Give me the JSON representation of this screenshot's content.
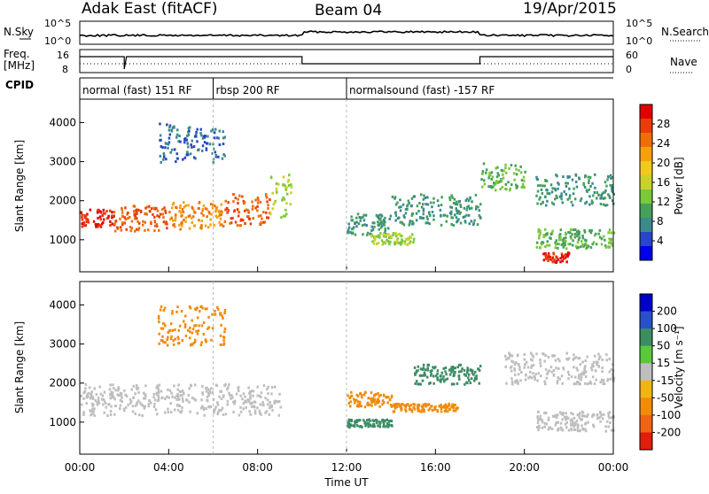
{
  "header": {
    "station": "Adak East (fitACF)",
    "beam": "Beam 04",
    "date": "19/Apr/2015"
  },
  "panels": {
    "noise": {
      "left_label": "N.Sky",
      "left_ticks": [
        "10^5",
        "10^0"
      ],
      "right_ticks": [
        "10^5",
        "10^0"
      ],
      "right_label": "N.Search"
    },
    "freq": {
      "left_label_1": "Freq.",
      "left_label_2": "[MHz]",
      "left_ticks": [
        "16",
        "8"
      ],
      "right_ticks": [
        "60",
        "0"
      ],
      "right_label": "Nave"
    },
    "cpid": {
      "label": "CPID",
      "segments": [
        {
          "text": "normal (fast) 151 RF",
          "start_hr": 0,
          "end_hr": 6
        },
        {
          "text": "rbsp 200 RF",
          "start_hr": 6,
          "end_hr": 12
        },
        {
          "text": "normalsound (fast) -157 RF",
          "start_hr": 12,
          "end_hr": 24
        }
      ]
    }
  },
  "power_panel": {
    "ylabel": "Slant Range [km]",
    "colorbar_label": "Power [dB]",
    "colorbar_ticks": [
      "28",
      "24",
      "20",
      "16",
      "12",
      "8",
      "4"
    ],
    "colors": [
      "#0000e8",
      "#2846c8",
      "#3c8a8c",
      "#46a05a",
      "#7ac83c",
      "#c8d22a",
      "#f0c81e",
      "#f5a00f",
      "#f06e0a",
      "#e83c0a",
      "#e00000"
    ]
  },
  "velocity_panel": {
    "ylabel": "Slant Range [km]",
    "colorbar_label": "Velocity [m s⁻¹]",
    "colorbar_ticks": [
      "200",
      "100",
      "50",
      "15",
      "-15",
      "-50",
      "-100",
      "-200"
    ],
    "colors": [
      "#0000c8",
      "#2850c8",
      "#3c8c64",
      "#5ac83c",
      "#bebebe",
      "#f0b414",
      "#f08c0a",
      "#f06414",
      "#e01e0a"
    ]
  },
  "xaxis": {
    "label": "Time UT",
    "ticks": [
      "00:00",
      "04:00",
      "08:00",
      "12:00",
      "16:00",
      "20:00",
      "00:00"
    ]
  },
  "chart_data": {
    "type": "heatmap",
    "title": "Adak East (fitACF) Beam 04 19/Apr/2015",
    "xlabel": "Time UT",
    "ylabel": "Slant Range [km]",
    "xlim_hours": [
      0,
      24
    ],
    "ylim": [
      180,
      4600
    ],
    "power_features": [
      {
        "t0": 0.0,
        "t1": 1.5,
        "r0": 1350,
        "r1": 1800,
        "level": 9
      },
      {
        "t0": 1.5,
        "t1": 4.0,
        "r0": 1250,
        "r1": 1900,
        "level": 8
      },
      {
        "t0": 4.0,
        "t1": 6.5,
        "r0": 1300,
        "r1": 2000,
        "level": 7
      },
      {
        "t0": 6.5,
        "t1": 8.5,
        "r0": 1400,
        "r1": 2200,
        "level": 8
      },
      {
        "t0": 8.5,
        "t1": 9.5,
        "r0": 1600,
        "r1": 2700,
        "level": 4
      },
      {
        "t0": 3.5,
        "t1": 6.5,
        "r0": 3000,
        "r1": 4000,
        "level": 1
      },
      {
        "t0": 12.0,
        "t1": 14.0,
        "r0": 1100,
        "r1": 1700,
        "level": 2
      },
      {
        "t0": 13.0,
        "t1": 15.0,
        "r0": 900,
        "r1": 1200,
        "level": 4
      },
      {
        "t0": 14.0,
        "t1": 18.0,
        "r0": 1400,
        "r1": 2200,
        "level": 2
      },
      {
        "t0": 18.0,
        "t1": 20.0,
        "r0": 2300,
        "r1": 3000,
        "level": 3
      },
      {
        "t0": 20.5,
        "t1": 24.0,
        "r0": 1900,
        "r1": 2700,
        "level": 2
      },
      {
        "t0": 20.5,
        "t1": 24.0,
        "r0": 800,
        "r1": 1300,
        "level": 3
      },
      {
        "t0": 20.8,
        "t1": 22.0,
        "r0": 450,
        "r1": 700,
        "level": 9
      }
    ],
    "velocity_features": [
      {
        "t0": 0.0,
        "t1": 9.0,
        "r0": 1200,
        "r1": 2000,
        "vel": 0
      },
      {
        "t0": 3.5,
        "t1": 6.5,
        "r0": 3000,
        "r1": 4000,
        "vel": -50
      },
      {
        "t0": 12.0,
        "t1": 14.0,
        "r0": 1400,
        "r1": 1800,
        "vel": -50
      },
      {
        "t0": 14.0,
        "t1": 17.0,
        "r0": 1300,
        "r1": 1500,
        "vel": -50
      },
      {
        "t0": 15.0,
        "t1": 18.0,
        "r0": 2000,
        "r1": 2500,
        "vel": 50
      },
      {
        "t0": 12.0,
        "t1": 14.0,
        "r0": 900,
        "r1": 1100,
        "vel": 50
      },
      {
        "t0": 20.5,
        "t1": 24.0,
        "r0": 800,
        "r1": 1300,
        "vel": 0
      },
      {
        "t0": 19.0,
        "t1": 24.0,
        "r0": 2000,
        "r1": 2800,
        "vel": 0
      }
    ]
  }
}
